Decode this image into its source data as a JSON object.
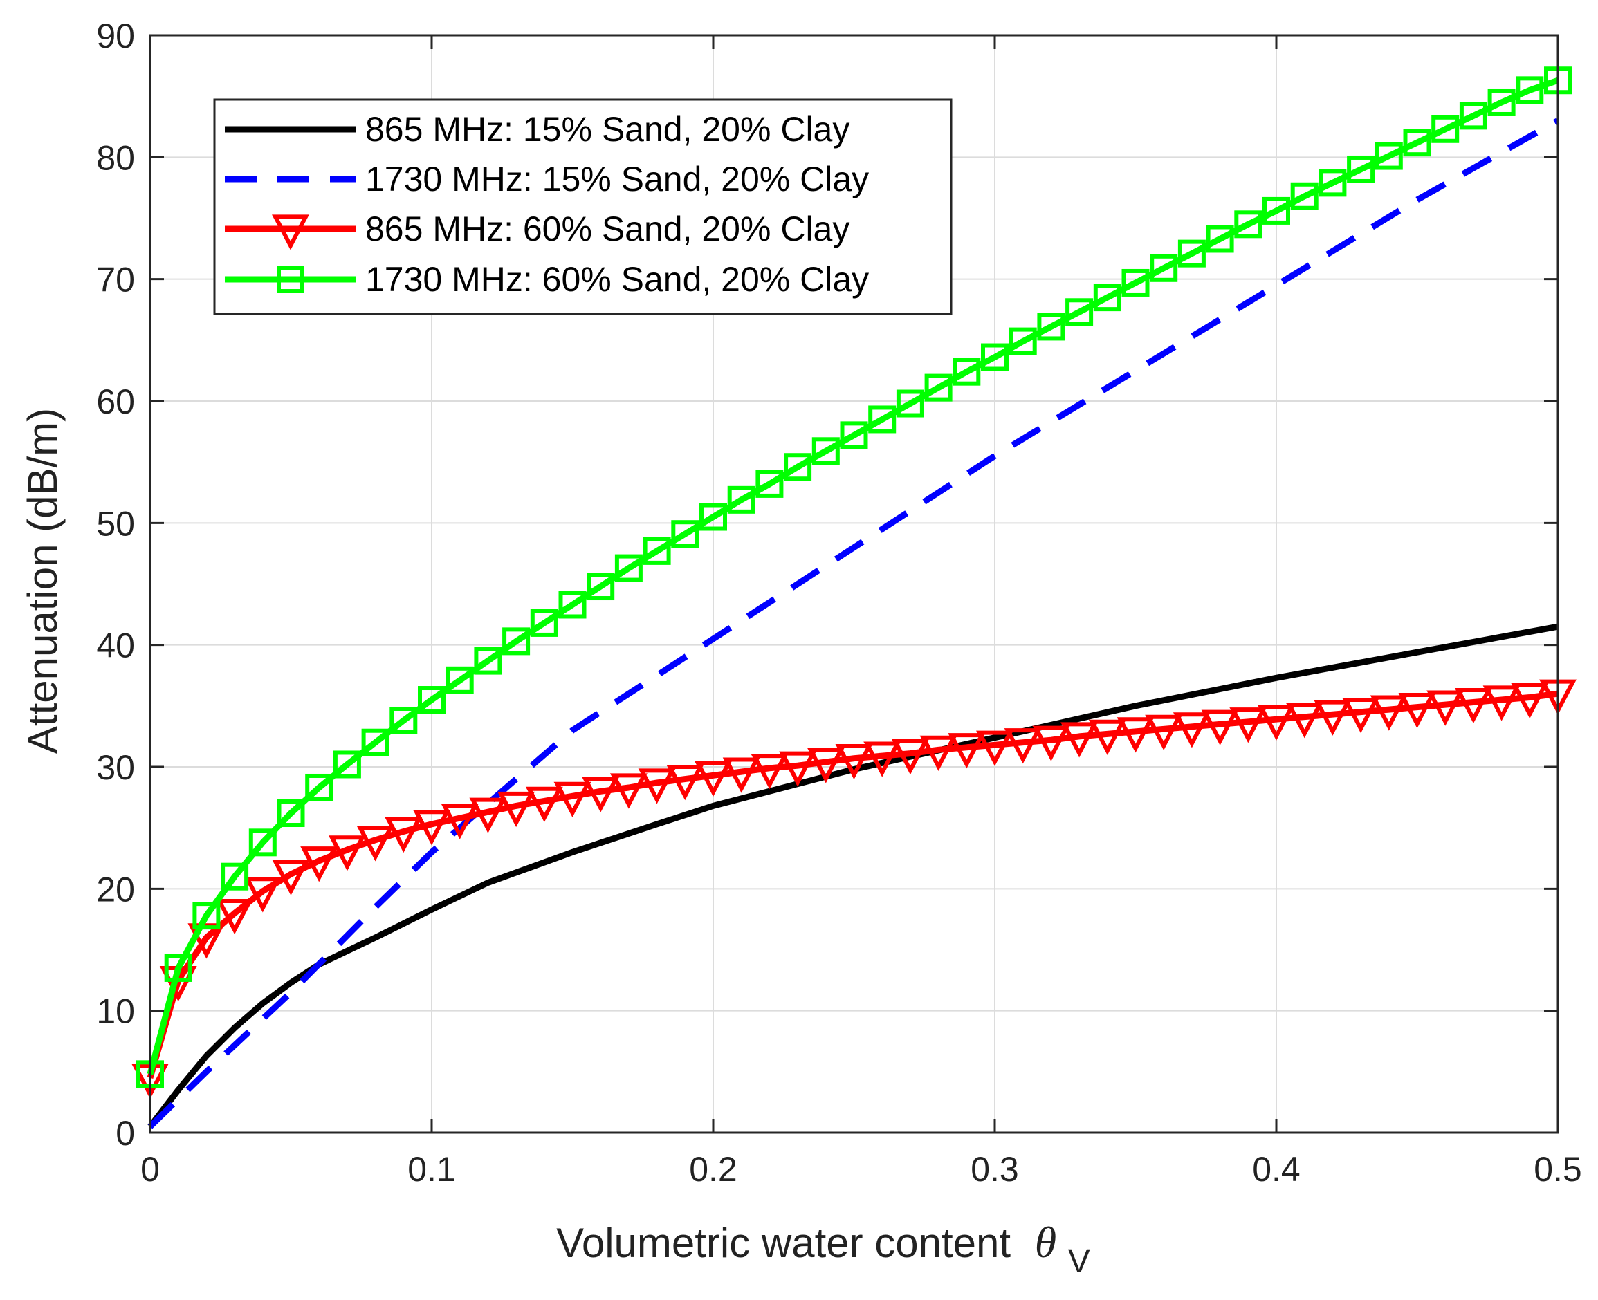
{
  "chart_data": {
    "type": "line",
    "title": "",
    "xlabel": "Volumetric water content",
    "xlabel_symbol": "θ",
    "xlabel_subscript": "V",
    "ylabel": "Attenuation (dB/m)",
    "xlim": [
      0,
      0.5
    ],
    "ylim": [
      0,
      90
    ],
    "xticks": [
      0,
      0.1,
      0.2,
      0.3,
      0.4,
      0.5
    ],
    "xtick_labels": [
      "0",
      "0.1",
      "0.2",
      "0.3",
      "0.4",
      "0.5"
    ],
    "yticks": [
      0,
      10,
      20,
      30,
      40,
      50,
      60,
      70,
      80,
      90
    ],
    "ytick_labels": [
      "0",
      "10",
      "20",
      "30",
      "40",
      "50",
      "60",
      "70",
      "80",
      "90"
    ],
    "grid": true,
    "legend_position": "top-left",
    "series": [
      {
        "name": "865 MHz: 15% Sand, 20% Clay",
        "color": "#000000",
        "style": "solid",
        "marker": "none",
        "x": [
          0,
          0.01,
          0.02,
          0.03,
          0.04,
          0.05,
          0.06,
          0.08,
          0.1,
          0.12,
          0.15,
          0.18,
          0.2,
          0.25,
          0.3,
          0.35,
          0.4,
          0.45,
          0.5
        ],
        "y": [
          0.5,
          3.5,
          6.3,
          8.6,
          10.6,
          12.3,
          13.8,
          16.0,
          18.3,
          20.5,
          23.0,
          25.3,
          26.8,
          29.8,
          32.4,
          35.0,
          37.3,
          39.4,
          41.5
        ]
      },
      {
        "name": "1730 MHz: 15% Sand, 20% Clay",
        "color": "#0000ff",
        "style": "dashed",
        "marker": "none",
        "x": [
          0,
          0.02,
          0.05,
          0.08,
          0.1,
          0.12,
          0.15,
          0.2,
          0.25,
          0.3,
          0.35,
          0.4,
          0.45,
          0.5
        ],
        "y": [
          0.5,
          5.0,
          11.5,
          18.5,
          23.0,
          27.0,
          33.0,
          40.5,
          48.0,
          55.5,
          62.5,
          69.5,
          76.5,
          83.0
        ]
      },
      {
        "name": "865 MHz: 60% Sand, 20% Clay",
        "color": "#ff0000",
        "style": "solid",
        "marker": "triangle-down",
        "x": [
          0,
          0.01,
          0.02,
          0.03,
          0.04,
          0.05,
          0.06,
          0.07,
          0.08,
          0.09,
          0.1,
          0.11,
          0.12,
          0.13,
          0.14,
          0.15,
          0.16,
          0.17,
          0.18,
          0.19,
          0.2,
          0.21,
          0.22,
          0.23,
          0.24,
          0.25,
          0.26,
          0.27,
          0.28,
          0.29,
          0.3,
          0.31,
          0.32,
          0.33,
          0.34,
          0.35,
          0.36,
          0.37,
          0.38,
          0.39,
          0.4,
          0.41,
          0.42,
          0.43,
          0.44,
          0.45,
          0.46,
          0.47,
          0.48,
          0.49,
          0.5
        ],
        "y": [
          4.5,
          12.5,
          16.0,
          18.0,
          19.8,
          21.2,
          22.3,
          23.2,
          24.0,
          24.7,
          25.3,
          25.8,
          26.3,
          26.8,
          27.2,
          27.6,
          28.0,
          28.3,
          28.7,
          29.0,
          29.3,
          29.6,
          29.9,
          30.1,
          30.4,
          30.7,
          30.9,
          31.1,
          31.4,
          31.6,
          31.8,
          32.0,
          32.2,
          32.5,
          32.7,
          32.9,
          33.1,
          33.3,
          33.5,
          33.7,
          33.9,
          34.1,
          34.3,
          34.5,
          34.7,
          34.9,
          35.1,
          35.3,
          35.5,
          35.7,
          36.0
        ]
      },
      {
        "name": "1730 MHz: 60% Sand, 20% Clay",
        "color": "#00ff00",
        "style": "solid",
        "marker": "square",
        "x": [
          0,
          0.01,
          0.02,
          0.03,
          0.04,
          0.05,
          0.06,
          0.07,
          0.08,
          0.09,
          0.1,
          0.11,
          0.12,
          0.13,
          0.14,
          0.15,
          0.16,
          0.17,
          0.18,
          0.19,
          0.2,
          0.21,
          0.22,
          0.23,
          0.24,
          0.25,
          0.26,
          0.27,
          0.28,
          0.29,
          0.3,
          0.31,
          0.32,
          0.33,
          0.34,
          0.35,
          0.36,
          0.37,
          0.38,
          0.39,
          0.4,
          0.41,
          0.42,
          0.43,
          0.44,
          0.45,
          0.46,
          0.47,
          0.48,
          0.49,
          0.5
        ],
        "y": [
          4.8,
          13.5,
          17.8,
          21.0,
          23.8,
          26.2,
          28.3,
          30.2,
          32.0,
          33.8,
          35.5,
          37.1,
          38.7,
          40.3,
          41.8,
          43.3,
          44.8,
          46.3,
          47.7,
          49.1,
          50.5,
          51.9,
          53.2,
          54.6,
          55.9,
          57.2,
          58.5,
          59.8,
          61.1,
          62.4,
          63.6,
          64.9,
          66.1,
          67.3,
          68.5,
          69.7,
          70.9,
          72.1,
          73.3,
          74.5,
          75.6,
          76.8,
          77.9,
          79.0,
          80.1,
          81.2,
          82.3,
          83.4,
          84.5,
          85.5,
          86.3
        ]
      }
    ]
  }
}
